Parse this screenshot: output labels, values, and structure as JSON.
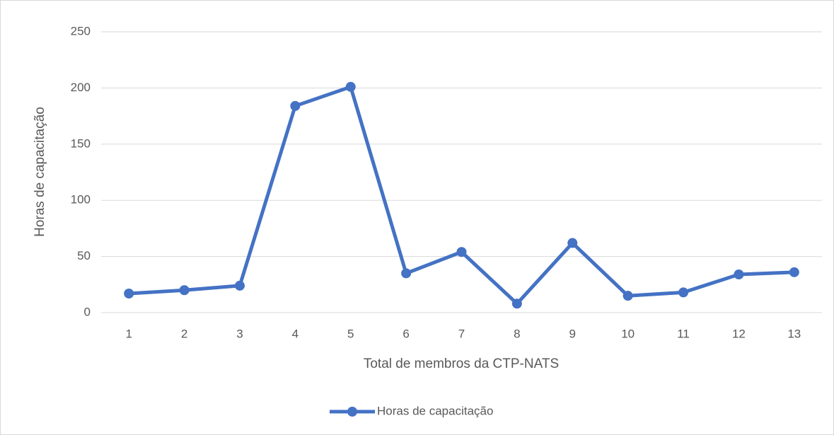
{
  "chart_data": {
    "type": "line",
    "x_label": "Total de membros da CTP-NATS",
    "y_label": "Horas de capacitação",
    "categories": [
      "1",
      "2",
      "3",
      "4",
      "5",
      "6",
      "7",
      "8",
      "9",
      "10",
      "11",
      "12",
      "13"
    ],
    "series": [
      {
        "name": "Horas de capacitação",
        "color": "#4472c4",
        "values": [
          17,
          20,
          24,
          184,
          201,
          35,
          54,
          8,
          62,
          15,
          18,
          34,
          36
        ]
      }
    ],
    "ylim": [
      0,
      250
    ],
    "yticks": [
      0,
      50,
      100,
      150,
      200,
      250
    ],
    "grid": true,
    "legend": "bottom"
  }
}
